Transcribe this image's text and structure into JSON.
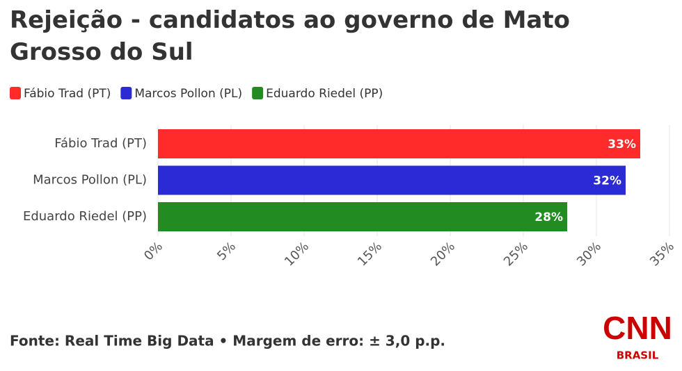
{
  "chart_data": {
    "type": "hbar",
    "title": "Rejeição - candidatos ao governo de Mato Grosso do Sul",
    "categories": [
      "Fábio Trad (PT)",
      "Marcos Pollon (PL)",
      "Eduardo Riedel (PP)"
    ],
    "values": [
      33,
      32,
      28
    ],
    "value_labels": [
      "33%",
      "32%",
      "28%"
    ],
    "colors": [
      "#ff2b2b",
      "#2b2bd6",
      "#228b22"
    ],
    "xlim": [
      0,
      35
    ],
    "xticks": [
      {
        "value": 0,
        "label": "0%"
      },
      {
        "value": 5,
        "label": "5%"
      },
      {
        "value": 10,
        "label": "10%"
      },
      {
        "value": 15,
        "label": "15%"
      },
      {
        "value": 20,
        "label": "20%"
      },
      {
        "value": 25,
        "label": "25%"
      },
      {
        "value": 30,
        "label": "30%"
      },
      {
        "value": 35,
        "label": "35%"
      }
    ],
    "grid": true,
    "source": "Fonte: Real Time Big Data • Margem de erro: ± 3,0 p.p."
  },
  "logo": {
    "name": "CNN",
    "subtitle": "BRASIL"
  }
}
